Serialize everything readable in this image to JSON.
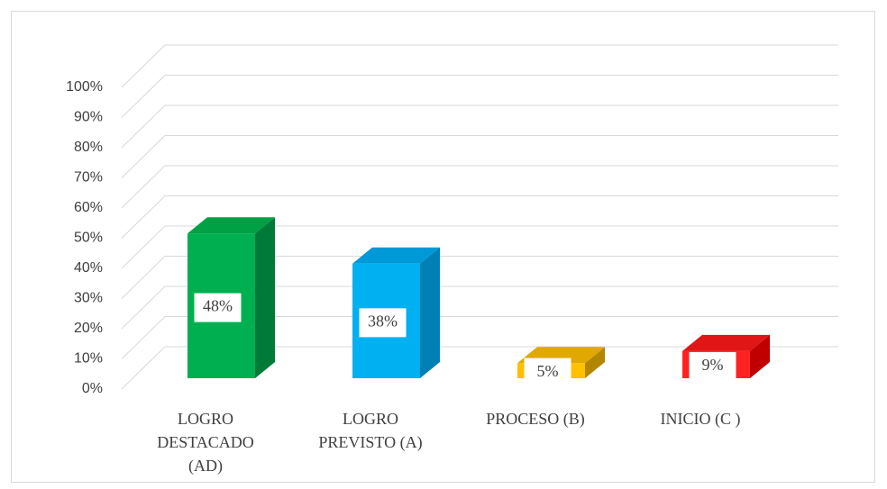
{
  "chart_data": {
    "type": "bar3d",
    "categories": [
      "LOGRO DESTACADO (AD)",
      "LOGRO PREVISTO (A)",
      "PROCESO (B)",
      "INICIO (C )"
    ],
    "values": [
      48,
      38,
      5,
      9
    ],
    "value_labels": [
      "48%",
      "38%",
      "5%",
      "9%"
    ],
    "colors": [
      "#00b050",
      "#00b0f0",
      "#ffc000",
      "#ff2222"
    ],
    "side_colors": [
      "#007a38",
      "#0080b4",
      "#b38600",
      "#c00000"
    ],
    "top_colors": [
      "#00a044",
      "#0099d8",
      "#e0a800",
      "#e01515"
    ],
    "ylim": [
      0,
      100
    ],
    "yticks": [
      {
        "value": 0,
        "label": "0%"
      },
      {
        "value": 10,
        "label": "10%"
      },
      {
        "value": 20,
        "label": "20%"
      },
      {
        "value": 30,
        "label": "30%"
      },
      {
        "value": 40,
        "label": "40%"
      },
      {
        "value": 50,
        "label": "50%"
      },
      {
        "value": 60,
        "label": "60%"
      },
      {
        "value": 70,
        "label": "70%"
      },
      {
        "value": 80,
        "label": "80%"
      },
      {
        "value": 90,
        "label": "90%"
      },
      {
        "value": 100,
        "label": "100%"
      }
    ],
    "grid": true
  }
}
